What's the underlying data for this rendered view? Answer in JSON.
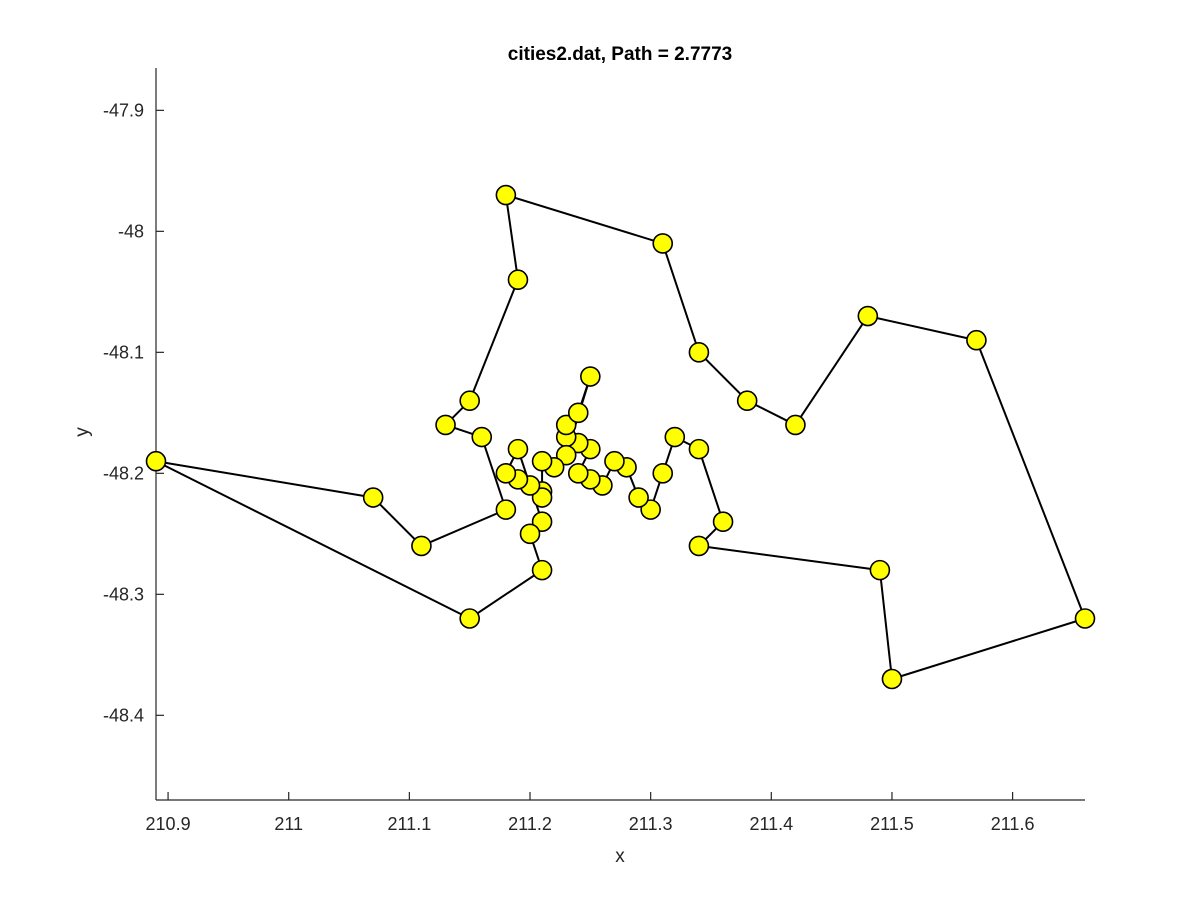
{
  "chart_data": {
    "type": "scatter",
    "title": "cities2.dat, Path = 2.7773",
    "xlabel": "x",
    "ylabel": "y",
    "xlim": [
      210.89,
      211.66
    ],
    "ylim": [
      -48.47,
      -47.865
    ],
    "xticks": [
      210.9,
      211,
      211.1,
      211.2,
      211.3,
      211.4,
      211.5,
      211.6
    ],
    "xtick_labels": [
      "210.9",
      "211",
      "211.1",
      "211.2",
      "211.3",
      "211.4",
      "211.5",
      "211.6"
    ],
    "yticks": [
      -47.9,
      -48,
      -48.1,
      -48.2,
      -48.3,
      -48.4
    ],
    "ytick_labels": [
      "-47.9",
      "-48",
      "-48.1",
      "-48.2",
      "-48.3",
      "-48.4"
    ],
    "grid": false,
    "box": false,
    "series": [
      {
        "path_closed": true,
        "line_color": "#000000",
        "marker_color": "#ffff00",
        "marker_edge_color": "#000000",
        "marker": "circle",
        "points": [
          [
            211.18,
            -47.97
          ],
          [
            211.31,
            -48.01
          ],
          [
            211.34,
            -48.1
          ],
          [
            211.38,
            -48.14
          ],
          [
            211.42,
            -48.16
          ],
          [
            211.48,
            -48.07
          ],
          [
            211.57,
            -48.09
          ],
          [
            211.66,
            -48.32
          ],
          [
            211.5,
            -48.37
          ],
          [
            211.49,
            -48.28
          ],
          [
            211.34,
            -48.26
          ],
          [
            211.36,
            -48.24
          ],
          [
            211.34,
            -48.18
          ],
          [
            211.32,
            -48.17
          ],
          [
            211.31,
            -48.2
          ],
          [
            211.3,
            -48.23
          ],
          [
            211.29,
            -48.22
          ],
          [
            211.28,
            -48.195
          ],
          [
            211.27,
            -48.19
          ],
          [
            211.26,
            -48.21
          ],
          [
            211.25,
            -48.205
          ],
          [
            211.24,
            -48.2
          ],
          [
            211.25,
            -48.18
          ],
          [
            211.24,
            -48.175
          ],
          [
            211.23,
            -48.17
          ],
          [
            211.23,
            -48.16
          ],
          [
            211.24,
            -48.15
          ],
          [
            211.25,
            -48.12
          ],
          [
            211.23,
            -48.185
          ],
          [
            211.22,
            -48.195
          ],
          [
            211.21,
            -48.19
          ],
          [
            211.21,
            -48.215
          ],
          [
            211.21,
            -48.22
          ],
          [
            211.2,
            -48.21
          ],
          [
            211.19,
            -48.205
          ],
          [
            211.18,
            -48.2
          ],
          [
            211.19,
            -48.18
          ],
          [
            211.21,
            -48.24
          ],
          [
            211.2,
            -48.25
          ],
          [
            211.21,
            -48.28
          ],
          [
            211.15,
            -48.32
          ],
          [
            210.89,
            -48.19
          ],
          [
            211.07,
            -48.22
          ],
          [
            211.11,
            -48.26
          ],
          [
            211.18,
            -48.23
          ],
          [
            211.16,
            -48.17
          ],
          [
            211.13,
            -48.16
          ],
          [
            211.15,
            -48.14
          ],
          [
            211.19,
            -48.04
          ]
        ]
      }
    ]
  }
}
